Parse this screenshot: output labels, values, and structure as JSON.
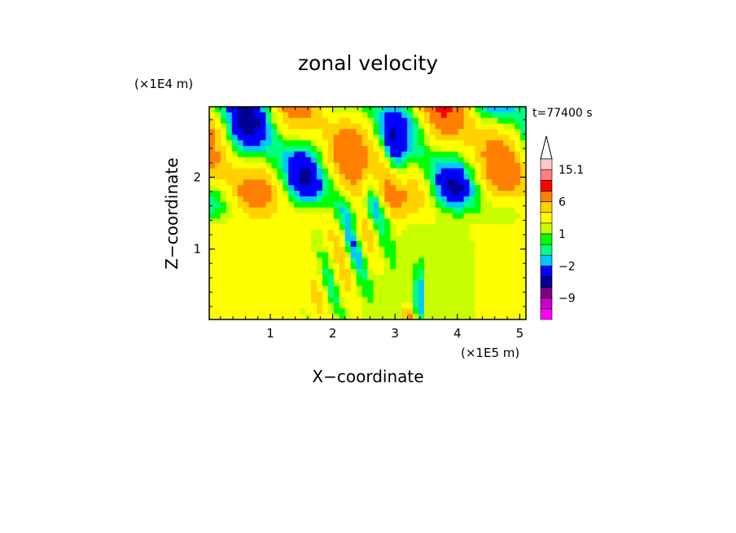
{
  "chart_data": {
    "type": "heatmap",
    "title": "zonal velocity",
    "xlabel": "X−coordinate",
    "ylabel": "Z−coordinate",
    "x_unit": "(×1E5 m)",
    "y_unit": "(×1E4 m)",
    "time_label": "t=77400 s",
    "xlim": [
      0.02,
      5.1
    ],
    "ylim": [
      0.02,
      2.98
    ],
    "x_ticks": [
      "1",
      "2",
      "3",
      "4",
      "5"
    ],
    "y_ticks": [
      "1",
      "2"
    ],
    "colorbar": {
      "labels": [
        "15.1",
        "6",
        "1",
        "−2",
        "−9"
      ],
      "levels_low_to_high": [
        -15,
        -12,
        -9,
        -6,
        -4,
        -2,
        -1,
        0,
        1,
        2,
        4,
        6,
        9,
        12,
        15.1
      ],
      "colors_low_to_high": [
        "#ff00ff",
        "#c800c8",
        "#800080",
        "#000096",
        "#0000ff",
        "#00c8ff",
        "#00ff80",
        "#00ff00",
        "#c8ff00",
        "#ffff00",
        "#ffd200",
        "#ff8000",
        "#ff0000",
        "#ff8080",
        "#ffc8c8"
      ]
    }
  }
}
